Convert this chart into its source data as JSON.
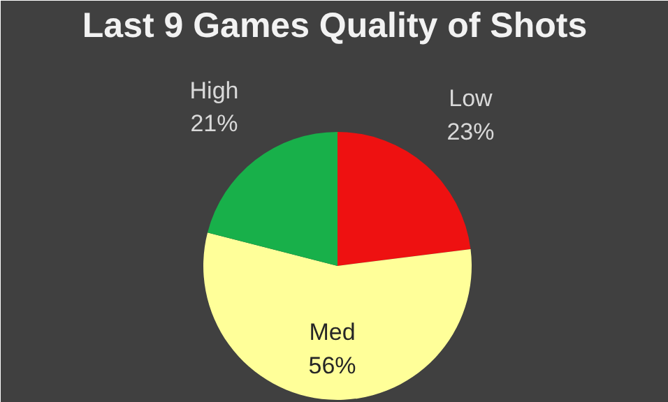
{
  "chart_data": {
    "type": "pie",
    "title": "Last 9 Games Quality of Shots",
    "categories": [
      "Low",
      "Med",
      "High"
    ],
    "values": [
      23,
      56,
      21
    ],
    "value_labels": [
      "23%",
      "56%",
      "21%"
    ],
    "colors": [
      "#ee1111",
      "#ffff99",
      "#18b04a"
    ]
  }
}
